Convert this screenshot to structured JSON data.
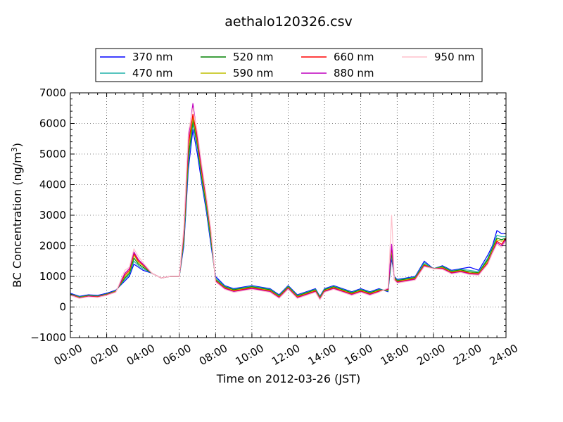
{
  "chart_data": {
    "type": "line",
    "title": "aethalo120326.csv",
    "xlabel": "Time on 2012-03-26 (JST)",
    "ylabel": "BC Concentration (ng/m3)",
    "xlim": [
      0,
      24
    ],
    "ylim": [
      -1000,
      7000
    ],
    "x_tick_labels": [
      "00:00",
      "02:00",
      "04:00",
      "06:00",
      "08:00",
      "10:00",
      "12:00",
      "14:00",
      "16:00",
      "18:00",
      "20:00",
      "22:00",
      "24:00"
    ],
    "y_tick_labels": [
      "7000",
      "6000",
      "5000",
      "4000",
      "3000",
      "2000",
      "1000",
      "0",
      "−1000"
    ],
    "grid": true,
    "legend_placement": "top",
    "x": [
      0,
      0.5,
      1,
      1.5,
      2,
      2.5,
      3,
      3.25,
      3.5,
      3.75,
      4,
      4.5,
      5,
      5.5,
      6,
      6.25,
      6.5,
      6.75,
      7,
      7.25,
      7.5,
      7.75,
      8,
      8.5,
      9,
      10,
      11,
      11.5,
      12,
      12.5,
      13,
      13.5,
      13.75,
      14,
      14.5,
      15,
      15.5,
      16,
      16.5,
      17,
      17.5,
      17.7,
      17.85,
      18,
      18.5,
      19,
      19.5,
      20,
      20.5,
      21,
      21.5,
      22,
      22.5,
      23,
      23.25,
      23.5,
      23.75,
      24
    ],
    "series": [
      {
        "name": "370 nm",
        "color": "#0000ff",
        "values": [
          450,
          350,
          400,
          380,
          450,
          550,
          850,
          1000,
          1400,
          1300,
          1200,
          1100,
          950,
          1000,
          1000,
          2000,
          4500,
          5800,
          5000,
          4000,
          3100,
          2000,
          1000,
          700,
          600,
          700,
          600,
          400,
          700,
          400,
          500,
          600,
          350,
          600,
          700,
          600,
          500,
          600,
          500,
          600,
          500,
          1600,
          1000,
          900,
          950,
          1000,
          1500,
          1250,
          1350,
          1200,
          1250,
          1300,
          1200,
          1700,
          2000,
          2500,
          2400,
          2400
        ]
      },
      {
        "name": "470 nm",
        "color": "#20b2aa",
        "values": [
          430,
          330,
          380,
          360,
          430,
          530,
          900,
          1050,
          1500,
          1350,
          1250,
          1100,
          950,
          1000,
          1000,
          2100,
          4700,
          6000,
          5200,
          4100,
          3200,
          2100,
          950,
          680,
          580,
          680,
          580,
          380,
          680,
          380,
          480,
          580,
          330,
          580,
          680,
          580,
          480,
          580,
          480,
          580,
          520,
          1700,
          980,
          880,
          930,
          980,
          1450,
          1250,
          1330,
          1180,
          1230,
          1200,
          1150,
          1600,
          1950,
          2350,
          2300,
          2300
        ]
      },
      {
        "name": "520 nm",
        "color": "#008000",
        "values": [
          420,
          320,
          370,
          350,
          420,
          520,
          950,
          1100,
          1600,
          1400,
          1300,
          1100,
          950,
          1000,
          1000,
          2200,
          4900,
          6100,
          5300,
          4200,
          3300,
          2200,
          900,
          660,
          560,
          660,
          560,
          360,
          660,
          360,
          460,
          560,
          310,
          560,
          660,
          560,
          460,
          560,
          460,
          560,
          540,
          1800,
          960,
          860,
          910,
          960,
          1400,
          1250,
          1310,
          1160,
          1210,
          1150,
          1120,
          1550,
          1900,
          2250,
          2200,
          2250
        ]
      },
      {
        "name": "590 nm",
        "color": "#bfbf00",
        "values": [
          410,
          310,
          360,
          340,
          410,
          510,
          1000,
          1150,
          1700,
          1450,
          1350,
          1100,
          950,
          1000,
          1000,
          2300,
          5100,
          6200,
          5400,
          4300,
          3400,
          2300,
          880,
          640,
          540,
          640,
          540,
          340,
          640,
          340,
          440,
          540,
          290,
          540,
          640,
          540,
          440,
          540,
          440,
          540,
          560,
          1900,
          940,
          840,
          890,
          940,
          1380,
          1250,
          1290,
          1140,
          1190,
          1120,
          1100,
          1500,
          1850,
          2200,
          2150,
          2200
        ]
      },
      {
        "name": "660 nm",
        "color": "#ff0000",
        "values": [
          400,
          300,
          350,
          330,
          400,
          500,
          1050,
          1200,
          1750,
          1500,
          1380,
          1100,
          950,
          1000,
          1000,
          2400,
          5300,
          6300,
          5500,
          4400,
          3500,
          2400,
          860,
          620,
          520,
          620,
          520,
          320,
          620,
          320,
          420,
          520,
          270,
          520,
          620,
          520,
          420,
          520,
          420,
          520,
          580,
          2000,
          920,
          820,
          870,
          920,
          1360,
          1250,
          1270,
          1120,
          1170,
          1100,
          1080,
          1450,
          1800,
          2150,
          2050,
          2250
        ]
      },
      {
        "name": "880 nm",
        "color": "#bf00bf",
        "values": [
          390,
          290,
          340,
          320,
          390,
          490,
          1100,
          1250,
          1800,
          1550,
          1400,
          1100,
          950,
          1000,
          1000,
          2500,
          5500,
          6650,
          5600,
          4500,
          3550,
          2450,
          840,
          600,
          500,
          600,
          500,
          300,
          600,
          300,
          400,
          500,
          250,
          500,
          600,
          500,
          400,
          500,
          400,
          500,
          600,
          2050,
          900,
          800,
          850,
          900,
          1340,
          1250,
          1250,
          1100,
          1150,
          1080,
          1060,
          1420,
          1780,
          2100,
          2000,
          2200
        ]
      },
      {
        "name": "950 nm",
        "color": "#ffc0cb",
        "values": [
          380,
          280,
          330,
          310,
          380,
          480,
          1200,
          1300,
          1900,
          1650,
          1450,
          1100,
          950,
          1000,
          1000,
          2600,
          5700,
          6500,
          5700,
          4600,
          3600,
          2500,
          820,
          580,
          480,
          580,
          480,
          280,
          580,
          280,
          380,
          480,
          230,
          480,
          580,
          480,
          380,
          480,
          380,
          480,
          620,
          3000,
          880,
          780,
          830,
          880,
          1320,
          1250,
          1230,
          1080,
          1130,
          1060,
          1040,
          1400,
          1750,
          2050,
          1950,
          2150
        ]
      }
    ]
  }
}
